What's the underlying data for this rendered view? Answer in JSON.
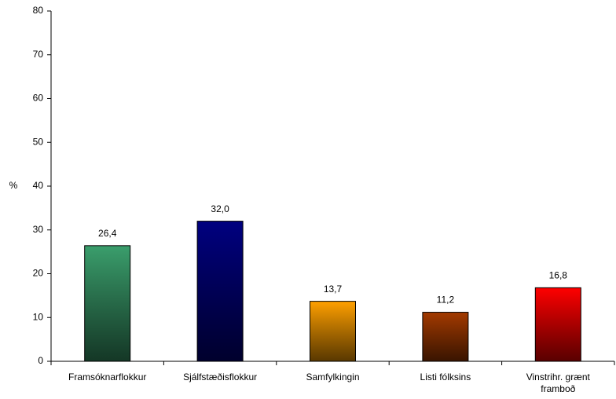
{
  "chart_data": {
    "type": "bar",
    "y_label": "%",
    "categories": [
      "Framsóknarflokkur",
      "Sjálfstæðisflokkur",
      "Samfylkingin",
      "Listi fólksins",
      "Vinstrihr. grænt framboð"
    ],
    "values": [
      26.4,
      32.0,
      13.7,
      11.2,
      16.8
    ],
    "value_labels": [
      "26,4",
      "32,0",
      "13,7",
      "11,2",
      "16,8"
    ],
    "colors": [
      "#3a9e6c",
      "#000080",
      "#ffa000",
      "#a43a00",
      "#ff0000"
    ],
    "ylim": [
      0,
      80
    ],
    "yticks": [
      0,
      10,
      20,
      30,
      40,
      50,
      60,
      70,
      80
    ],
    "grid": false
  }
}
